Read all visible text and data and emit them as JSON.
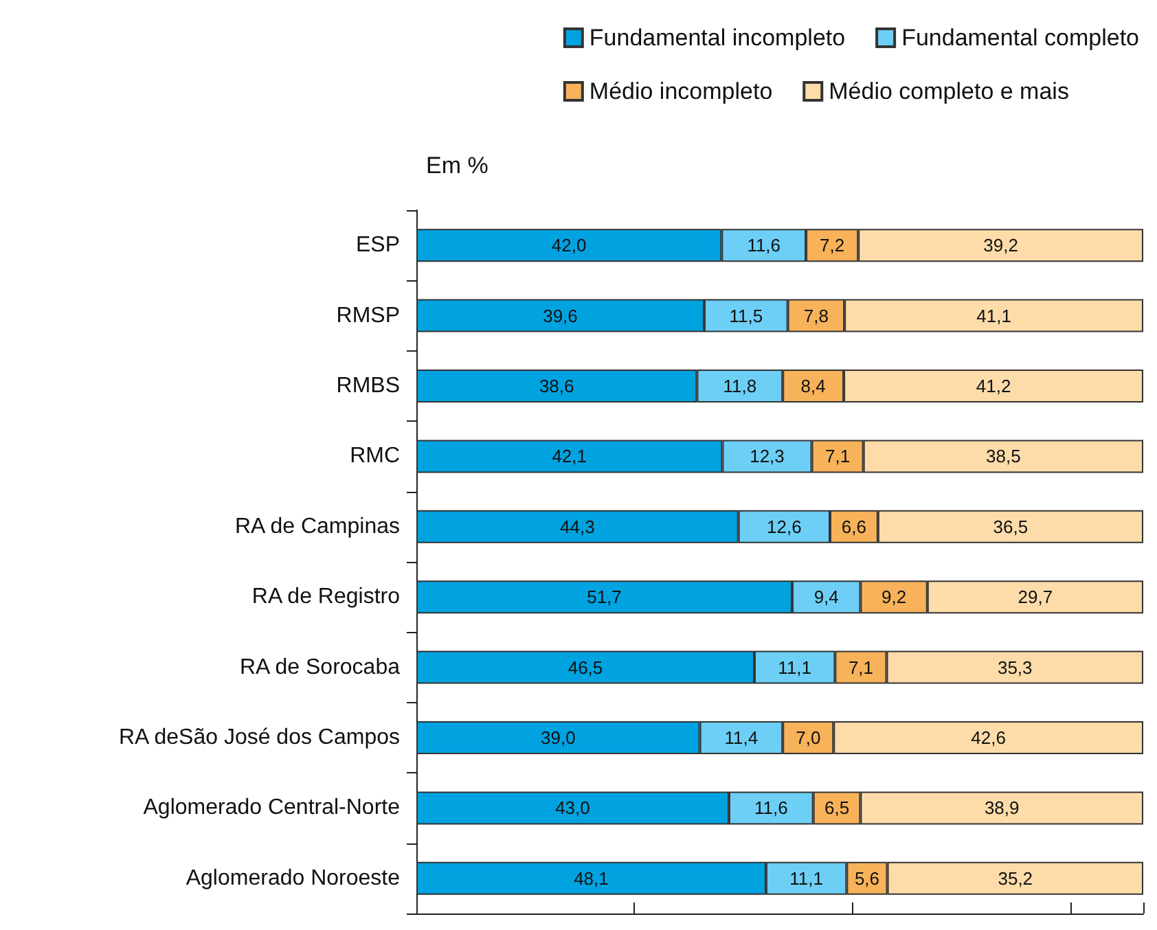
{
  "chart_data": {
    "type": "bar",
    "orientation": "horizontal",
    "stacked": true,
    "legend": "top right",
    "grid": false,
    "tick_labels": "y",
    "annotations": [
      "Em %"
    ],
    "categories": [
      "ESP",
      "RMSP",
      "RMBS",
      "RMC",
      "RA de Campinas",
      "RA de Registro",
      "RA de Sorocaba",
      "RA deSão José dos Campos",
      "Aglomerado Central-Norte",
      "Aglomerado Noroeste"
    ],
    "series": [
      {
        "name": "Fundamental incompleto",
        "color": "#00a3e0",
        "values": [
          42.0,
          39.6,
          38.6,
          42.1,
          44.3,
          51.7,
          46.5,
          39.0,
          43.0,
          48.1
        ],
        "value_labels": [
          "42,0",
          "39,6",
          "38,6",
          "42,1",
          "44,3",
          "51,7",
          "46,5",
          "39,0",
          "43,0",
          "48,1"
        ]
      },
      {
        "name": "Fundamental completo",
        "color": "#6dcff6",
        "values": [
          11.6,
          11.5,
          11.8,
          12.3,
          12.6,
          9.4,
          11.1,
          11.4,
          11.6,
          11.1
        ],
        "value_labels": [
          "11,6",
          "11,5",
          "11,8",
          "12,3",
          "12,6",
          "9,4",
          "11,1",
          "11,4",
          "11,6",
          "11,1"
        ]
      },
      {
        "name": "Médio incompleto",
        "color": "#f7b25a",
        "values": [
          7.2,
          7.8,
          8.4,
          7.1,
          6.6,
          9.2,
          7.1,
          7.0,
          6.5,
          5.6
        ],
        "value_labels": [
          "7,2",
          "7,8",
          "8,4",
          "7,1",
          "6,6",
          "9,2",
          "7,1",
          "7,0",
          "6,5",
          "5,6"
        ]
      },
      {
        "name": "Médio completo e mais",
        "color": "#fddcaa",
        "values": [
          39.2,
          41.1,
          41.2,
          38.5,
          36.5,
          29.7,
          35.3,
          42.6,
          38.9,
          35.2
        ],
        "value_labels": [
          "39,2",
          "41,1",
          "41,2",
          "38,5",
          "36,5",
          "29,7",
          "35,3",
          "42,6",
          "38,9",
          "35,2"
        ]
      }
    ]
  }
}
